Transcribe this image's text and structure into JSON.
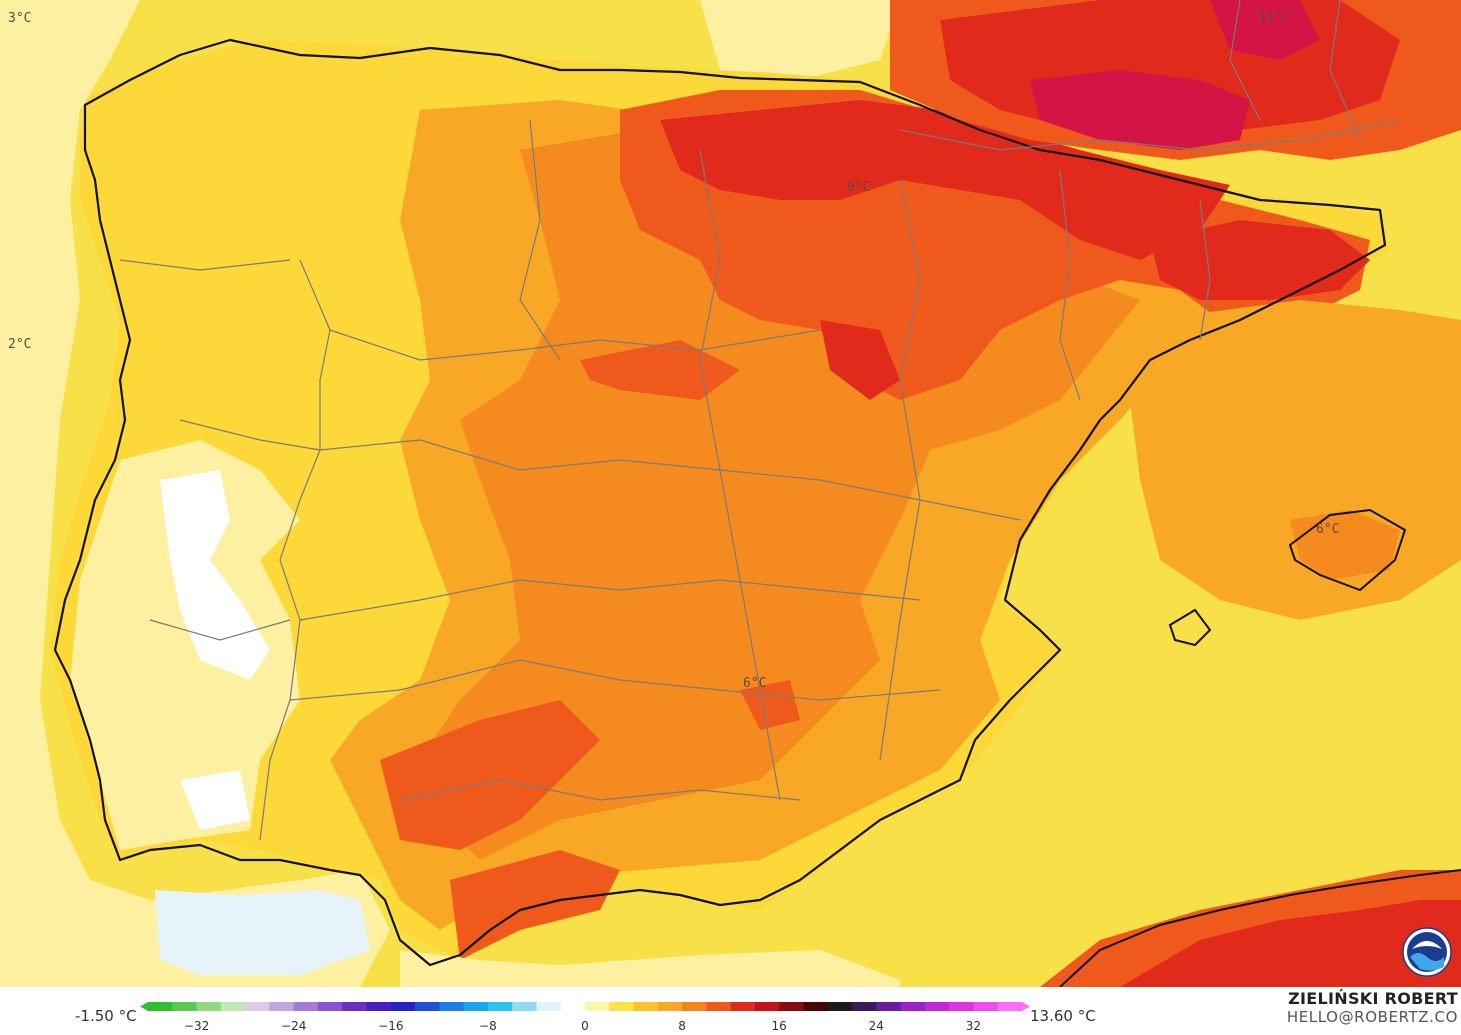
{
  "colors": {
    "sea_base": "#f8e048",
    "light_yellow": "#fdf0a0",
    "yellow": "#fcd838",
    "gold": "#fbc02a",
    "orange_light": "#f9a826",
    "orange": "#f58a1e",
    "red_orange": "#ef5a1c",
    "red": "#e22a1c",
    "crimson": "#d41444",
    "white": "#ffffff",
    "pale_blue": "#e6f3fb",
    "coast_line": "#111111",
    "border_line": "#7a7a7a"
  },
  "map_labels": [
    {
      "id": "lbl-3c",
      "text": "3°C"
    },
    {
      "id": "lbl-2c",
      "text": "2°C"
    },
    {
      "id": "lbl-11c",
      "text": "11°C"
    },
    {
      "id": "lbl-9c",
      "text": "9°C"
    },
    {
      "id": "lbl-6c-balearic",
      "text": "6°C"
    },
    {
      "id": "lbl-6c-inland",
      "text": "6°C"
    }
  ],
  "legend": {
    "min_label": "-1.50 °C",
    "max_label": "13.60 °C",
    "ticks": [
      "−32",
      "−24",
      "−16",
      "−8",
      "0",
      "8",
      "16",
      "24",
      "32"
    ],
    "tick_values": [
      -32,
      -24,
      -16,
      -8,
      0,
      8,
      16,
      24,
      32
    ],
    "range": [
      -36,
      36
    ],
    "palette": [
      "#2fbf2f",
      "#5acb4e",
      "#8fd97f",
      "#c4e8b5",
      "#d8cce8",
      "#c0a6e0",
      "#a57bd8",
      "#8a52cf",
      "#6a2ec5",
      "#4a1fc0",
      "#2424c8",
      "#1f50d8",
      "#1a7ee6",
      "#1aa6ec",
      "#28c6ee",
      "#8fdcf2",
      "#e0f2fa",
      "#ffffff",
      "#fff4a8",
      "#ffe24a",
      "#fcc42a",
      "#f9a826",
      "#f5841c",
      "#ef5a1c",
      "#e22a1c",
      "#c4121a",
      "#8e0a12",
      "#4a0606",
      "#1c1c1c",
      "#3a1a5a",
      "#6a1c9e",
      "#9a22c8",
      "#c428d6",
      "#e034e0",
      "#f04cf0",
      "#ff6cf6"
    ]
  },
  "author": {
    "name": "ZIELIŃSKI ROBERT",
    "email": "HELLO@ROBERTZ.CO"
  },
  "logo": {
    "text": "NOAA"
  }
}
